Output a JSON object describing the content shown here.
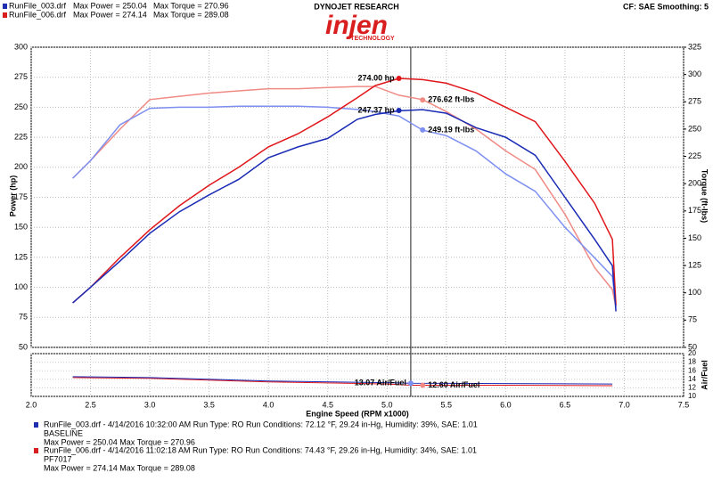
{
  "chart_data": {
    "type": "line",
    "header": "DYNOJET RESEARCH",
    "logo": "injen",
    "logo_sub": "TECHNOLOGY",
    "settings_text": "CF: SAE  Smoothing: 5",
    "runs": [
      {
        "file": "RunFile_003.drf",
        "max_power": "Max Power = 250.04",
        "max_torque": "Max Torque = 270.96",
        "color": "#1f2fb0",
        "details": "RunFile_003.drf - 4/14/2016 10:32:00 AM  Run Type: RO  Run Conditions: 72.12 °F, 29.24 in-Hg,  Humidity:  39%, SAE: 1.01",
        "label": "BASELINE",
        "summary": "Max Power = 250.04    Max Torque = 270.96"
      },
      {
        "file": "RunFile_006.drf",
        "max_power": "Max Power = 274.14",
        "max_torque": "Max Torque = 289.08",
        "color": "#d81e1e",
        "details": "RunFile_006.drf - 4/14/2016 11:02:18 AM  Run Type: RO  Run Conditions: 74.43 °F, 29.26 in-Hg,  Humidity:  34%, SAE: 1.01",
        "label": "PF7017",
        "summary": "Max Power = 274.14    Max Torque = 289.08"
      }
    ],
    "x_label": "Engine Speed (RPM x1000)",
    "y_label": "Power (hp)",
    "y2_label": "Torque (ft-lbs)",
    "afr_label": "Air/Fuel",
    "xlim": [
      2.0,
      7.5
    ],
    "xticks": [
      {
        "value": 2,
        "label": "2.0"
      },
      2.5,
      {
        "value": 3,
        "label": "3.0"
      },
      3.5,
      {
        "value": 4,
        "label": "4.0"
      },
      4.5,
      {
        "value": 5,
        "label": "5.0"
      },
      5.5,
      {
        "value": 6,
        "label": "6.0"
      },
      6.5,
      {
        "value": 7,
        "label": "7.0"
      },
      7.5
    ],
    "ylim": [
      50,
      300
    ],
    "yticks": [
      50,
      75,
      100,
      125,
      150,
      175,
      200,
      225,
      250,
      275,
      300
    ],
    "y2lim": [
      50,
      325
    ],
    "y2ticks": [
      50,
      75,
      100,
      125,
      150,
      175,
      200,
      225,
      250,
      275,
      300,
      325
    ],
    "afrlim": [
      10,
      20
    ],
    "afrticks": [
      10,
      12,
      14,
      16,
      18,
      20
    ],
    "cursor_x": 5.2,
    "grid": true,
    "x": [
      2.35,
      2.5,
      2.75,
      3.0,
      3.25,
      3.5,
      3.75,
      4.0,
      4.25,
      4.5,
      4.75,
      4.9,
      5.1,
      5.3,
      5.5,
      5.75,
      6.0,
      6.25,
      6.5,
      6.75,
      6.9,
      6.93
    ],
    "series": [
      {
        "color": "#f08a85",
        "axis": "y2",
        "values": [
          205,
          221,
          250,
          277,
          280,
          283,
          285,
          287,
          287,
          288,
          289,
          289,
          281,
          277,
          266,
          250,
          230,
          213,
          172,
          123,
          103,
          87
        ]
      },
      {
        "color": "#7d8ff0",
        "axis": "y2",
        "values": [
          205,
          221,
          254,
          269,
          270,
          270,
          271,
          271,
          271,
          270,
          268,
          266,
          262,
          249,
          244,
          230,
          209,
          193,
          160,
          132,
          115,
          87
        ]
      },
      {
        "color": "#e0161b",
        "axis": "y",
        "values": [
          87,
          100,
          125,
          148,
          168,
          185,
          200,
          217,
          228,
          242,
          258,
          268,
          274,
          273,
          270,
          262,
          250,
          238,
          205,
          170,
          140,
          85
        ]
      },
      {
        "color": "#1a2bb5",
        "axis": "y",
        "values": [
          87,
          100,
          122,
          145,
          163,
          177,
          190,
          208,
          217,
          224,
          240,
          244,
          247,
          248,
          245,
          233,
          225,
          210,
          175,
          140,
          118,
          80
        ]
      }
    ],
    "afr_x": [
      2.35,
      3.0,
      4.0,
      5.0,
      5.2,
      6.0,
      6.9
    ],
    "afr_series": [
      {
        "color": "#e0161b",
        "values": [
          14.4,
          14.2,
          13.4,
          12.9,
          12.6,
          12.6,
          12.5
        ]
      },
      {
        "color": "#1a2bb5",
        "values": [
          14.6,
          14.4,
          13.6,
          13.2,
          13.07,
          13.0,
          12.9
        ]
      }
    ],
    "annotations": [
      {
        "text": "274.00 hp",
        "x": 5.1,
        "y": 274,
        "axis": "y",
        "color": "#e0161b"
      },
      {
        "text": "247.37 hp",
        "x": 5.1,
        "y": 247.37,
        "axis": "y",
        "color": "#1a2bb5"
      },
      {
        "text": "276.62 ft-lbs",
        "x": 5.3,
        "y": 276.62,
        "axis": "y2",
        "color": "#f08a85"
      },
      {
        "text": "249.19 ft-lbs",
        "x": 5.3,
        "y": 249.19,
        "axis": "y2",
        "color": "#7d8ff0"
      },
      {
        "text": "13.07 Air/Fuel",
        "x": 5.2,
        "y": 13.07,
        "axis": "afr",
        "color": "#7d8ff0"
      },
      {
        "text": "12.60 Air/Fuel",
        "x": 5.3,
        "y": 12.6,
        "axis": "afr",
        "color": "#f08a85"
      }
    ]
  }
}
